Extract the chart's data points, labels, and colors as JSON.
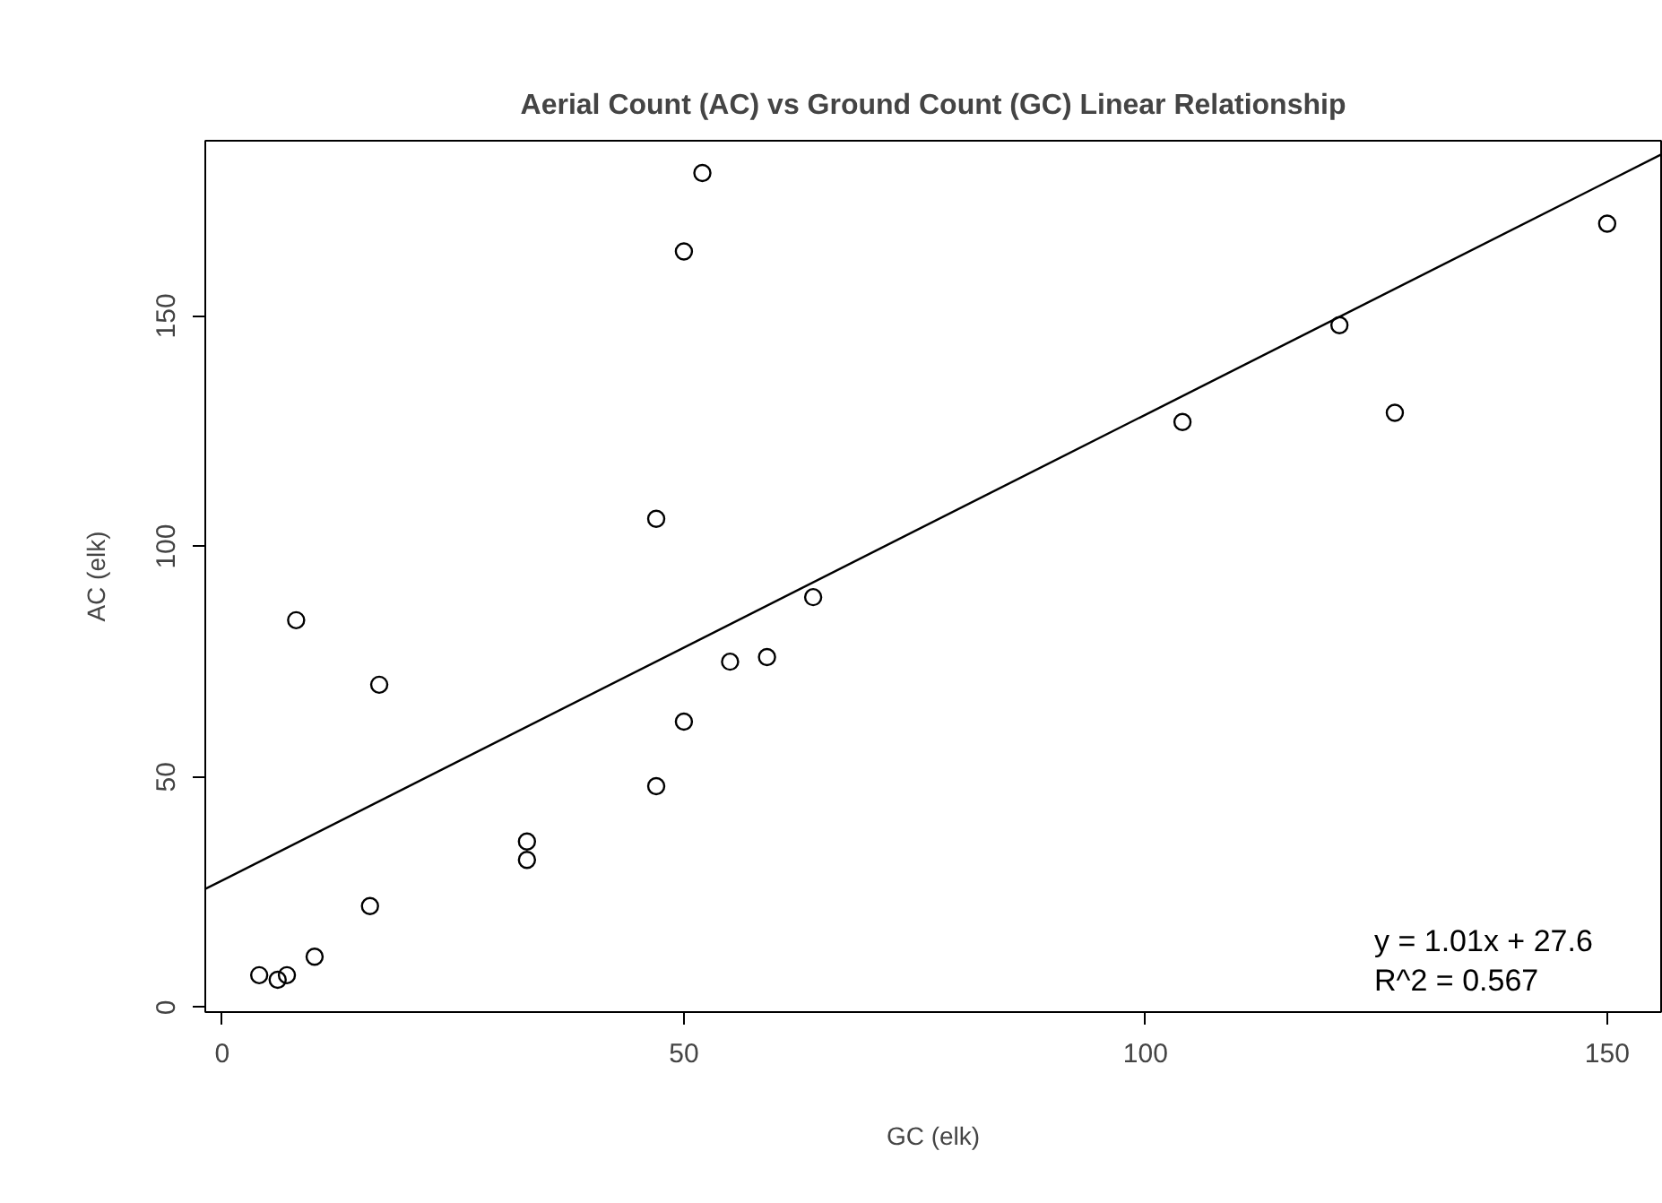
{
  "chart_data": {
    "type": "scatter",
    "title": "Aerial Count (AC) vs Ground Count (GC) Linear Relationship",
    "xlabel": "GC (elk)",
    "ylabel": "AC (elk)",
    "xlim": [
      -1.84,
      155.84
    ],
    "ylim": [
      -1,
      188
    ],
    "xticks": [
      0,
      50,
      100,
      150
    ],
    "yticks": [
      0,
      50,
      100,
      150
    ],
    "marker": "circle",
    "series": [
      {
        "color": "#000000",
        "x": [
          52,
          50,
          47,
          8,
          64,
          17,
          55,
          59,
          50,
          47,
          33,
          33,
          16,
          10,
          4,
          6,
          7,
          104,
          121,
          127,
          150
        ],
        "values": [
          181,
          164,
          106,
          84,
          89,
          70,
          75,
          76,
          62,
          48,
          36,
          32,
          22,
          11,
          7,
          6,
          7,
          127,
          148,
          129,
          170
        ]
      },
      {
        "type": "line",
        "marker": "none",
        "color": "#000000",
        "x": [
          -1.84,
          155.84
        ],
        "values": [
          25.7,
          185
        ]
      }
    ],
    "annotations": [
      "y = 1.01x + 27.6",
      "R^2 = 0.567"
    ]
  }
}
